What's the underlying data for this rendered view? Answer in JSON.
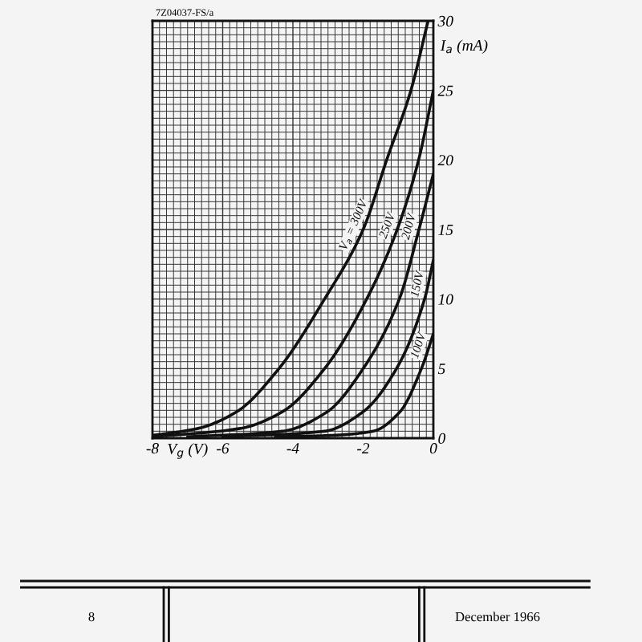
{
  "chart_data": {
    "type": "line",
    "xlabel": "V$_{g}$ (V)",
    "ylabel": "I$_{a}$ (mA)",
    "annotations": [
      "7Z04037-FS/a",
      "8",
      "December 1966"
    ],
    "xlim": [
      -8,
      0
    ],
    "xticks": [
      -8,
      -6,
      -4,
      -2,
      0
    ],
    "ylim": [
      0,
      30
    ],
    "yticks": [
      0,
      5,
      10,
      15,
      20,
      25,
      30
    ],
    "grid": true,
    "line_style": "solid",
    "series": [
      {
        "name": "V$_{a}$ = 300V",
        "color": "#111111",
        "x": [
          -8,
          -6.7,
          -5.6,
          -4.4,
          -3.1,
          -2.0,
          -1.33,
          -0.64,
          -0.15
        ],
        "values": [
          0.2,
          0.7,
          1.9,
          5,
          10,
          15,
          20,
          25,
          30
        ]
      },
      {
        "name": "250V",
        "color": "#111111",
        "x": [
          -8,
          -5.5,
          -4.3,
          -3.1,
          -1.9,
          -1.03,
          -0.42,
          0
        ],
        "values": [
          0.1,
          0.7,
          1.9,
          5,
          10,
          15,
          20,
          25
        ]
      },
      {
        "name": "200V",
        "color": "#111111",
        "x": [
          -7,
          -4.3,
          -3.02,
          -2.0,
          -0.97,
          -0.41,
          0
        ],
        "values": [
          0.1,
          0.5,
          1.9,
          5,
          10,
          15,
          19
        ]
      },
      {
        "name": "150V",
        "color": "#111111",
        "x": [
          -6,
          -3.1,
          -2.0,
          -1.05,
          -0.25,
          0
        ],
        "values": [
          0.1,
          0.5,
          1.9,
          5,
          10,
          12.8
        ]
      },
      {
        "name": "100V",
        "color": "#111111",
        "x": [
          -4.5,
          -2.9,
          -1.72,
          -0.95,
          -0.34,
          0
        ],
        "values": [
          0.1,
          0.2,
          0.5,
          1.9,
          5,
          7.5
        ]
      }
    ]
  }
}
